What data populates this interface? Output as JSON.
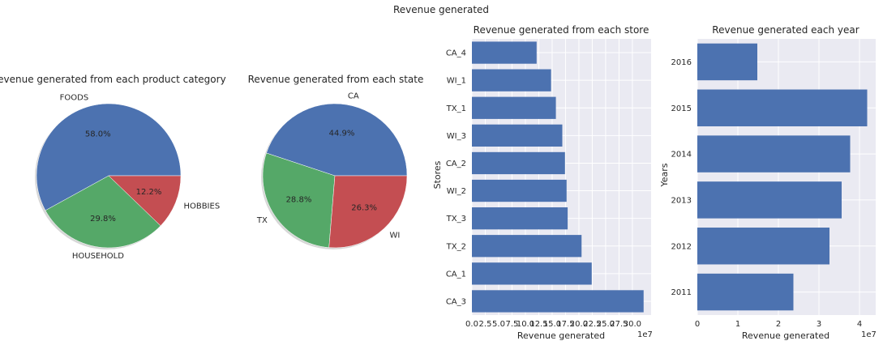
{
  "figure_title": "Revenue generated",
  "chart_data": [
    {
      "type": "pie",
      "title": "Revenue generated from each product category",
      "labels": [
        "FOODS",
        "HOUSEHOLD",
        "HOBBIES"
      ],
      "values": [
        58.0,
        29.8,
        12.2
      ],
      "pct_labels": [
        "58.0%",
        "29.8%",
        "12.2%"
      ],
      "colors": [
        "#4c72b0",
        "#55a868",
        "#c44e52"
      ]
    },
    {
      "type": "pie",
      "title": "Revenue generated from each state",
      "labels": [
        "CA",
        "TX",
        "WI"
      ],
      "values": [
        44.9,
        28.8,
        26.3
      ],
      "pct_labels": [
        "44.9%",
        "28.8%",
        "26.3%"
      ],
      "colors": [
        "#4c72b0",
        "#55a868",
        "#c44e52"
      ]
    },
    {
      "type": "bar",
      "orientation": "horizontal",
      "title": "Revenue generated from each store",
      "categories": [
        "CA_3",
        "CA_1",
        "TX_2",
        "TX_3",
        "WI_2",
        "CA_2",
        "WI_3",
        "TX_1",
        "WI_1",
        "CA_4"
      ],
      "values": [
        32.1,
        22.4,
        20.5,
        17.9,
        17.7,
        17.4,
        16.9,
        15.7,
        14.8,
        12.1
      ],
      "value_scale": "1e7",
      "xticks": [
        "0.0",
        "2.5",
        "5.0",
        "7.5",
        "10.0",
        "12.5",
        "15.0",
        "17.5",
        "20.0",
        "22.5",
        "25.0",
        "27.5",
        "30.0"
      ],
      "xlim": [
        0,
        33.5
      ],
      "xlabel": "Revenue generated",
      "ylabel": "Stores",
      "offset_text": "1e7",
      "color": "#4c72b0",
      "grid": true
    },
    {
      "type": "bar",
      "orientation": "horizontal",
      "title": "Revenue generated each year",
      "categories": [
        "2011",
        "2012",
        "2013",
        "2014",
        "2015",
        "2016"
      ],
      "values": [
        2.37,
        3.26,
        3.56,
        3.77,
        4.19,
        1.48
      ],
      "value_scale": "1e7",
      "xticks": [
        "0",
        "1",
        "2",
        "3",
        "4"
      ],
      "xlim": [
        0,
        4.4
      ],
      "xlabel": "Revenue generated",
      "ylabel": "Years",
      "offset_text": "1e7",
      "color": "#4c72b0",
      "grid": true
    }
  ]
}
